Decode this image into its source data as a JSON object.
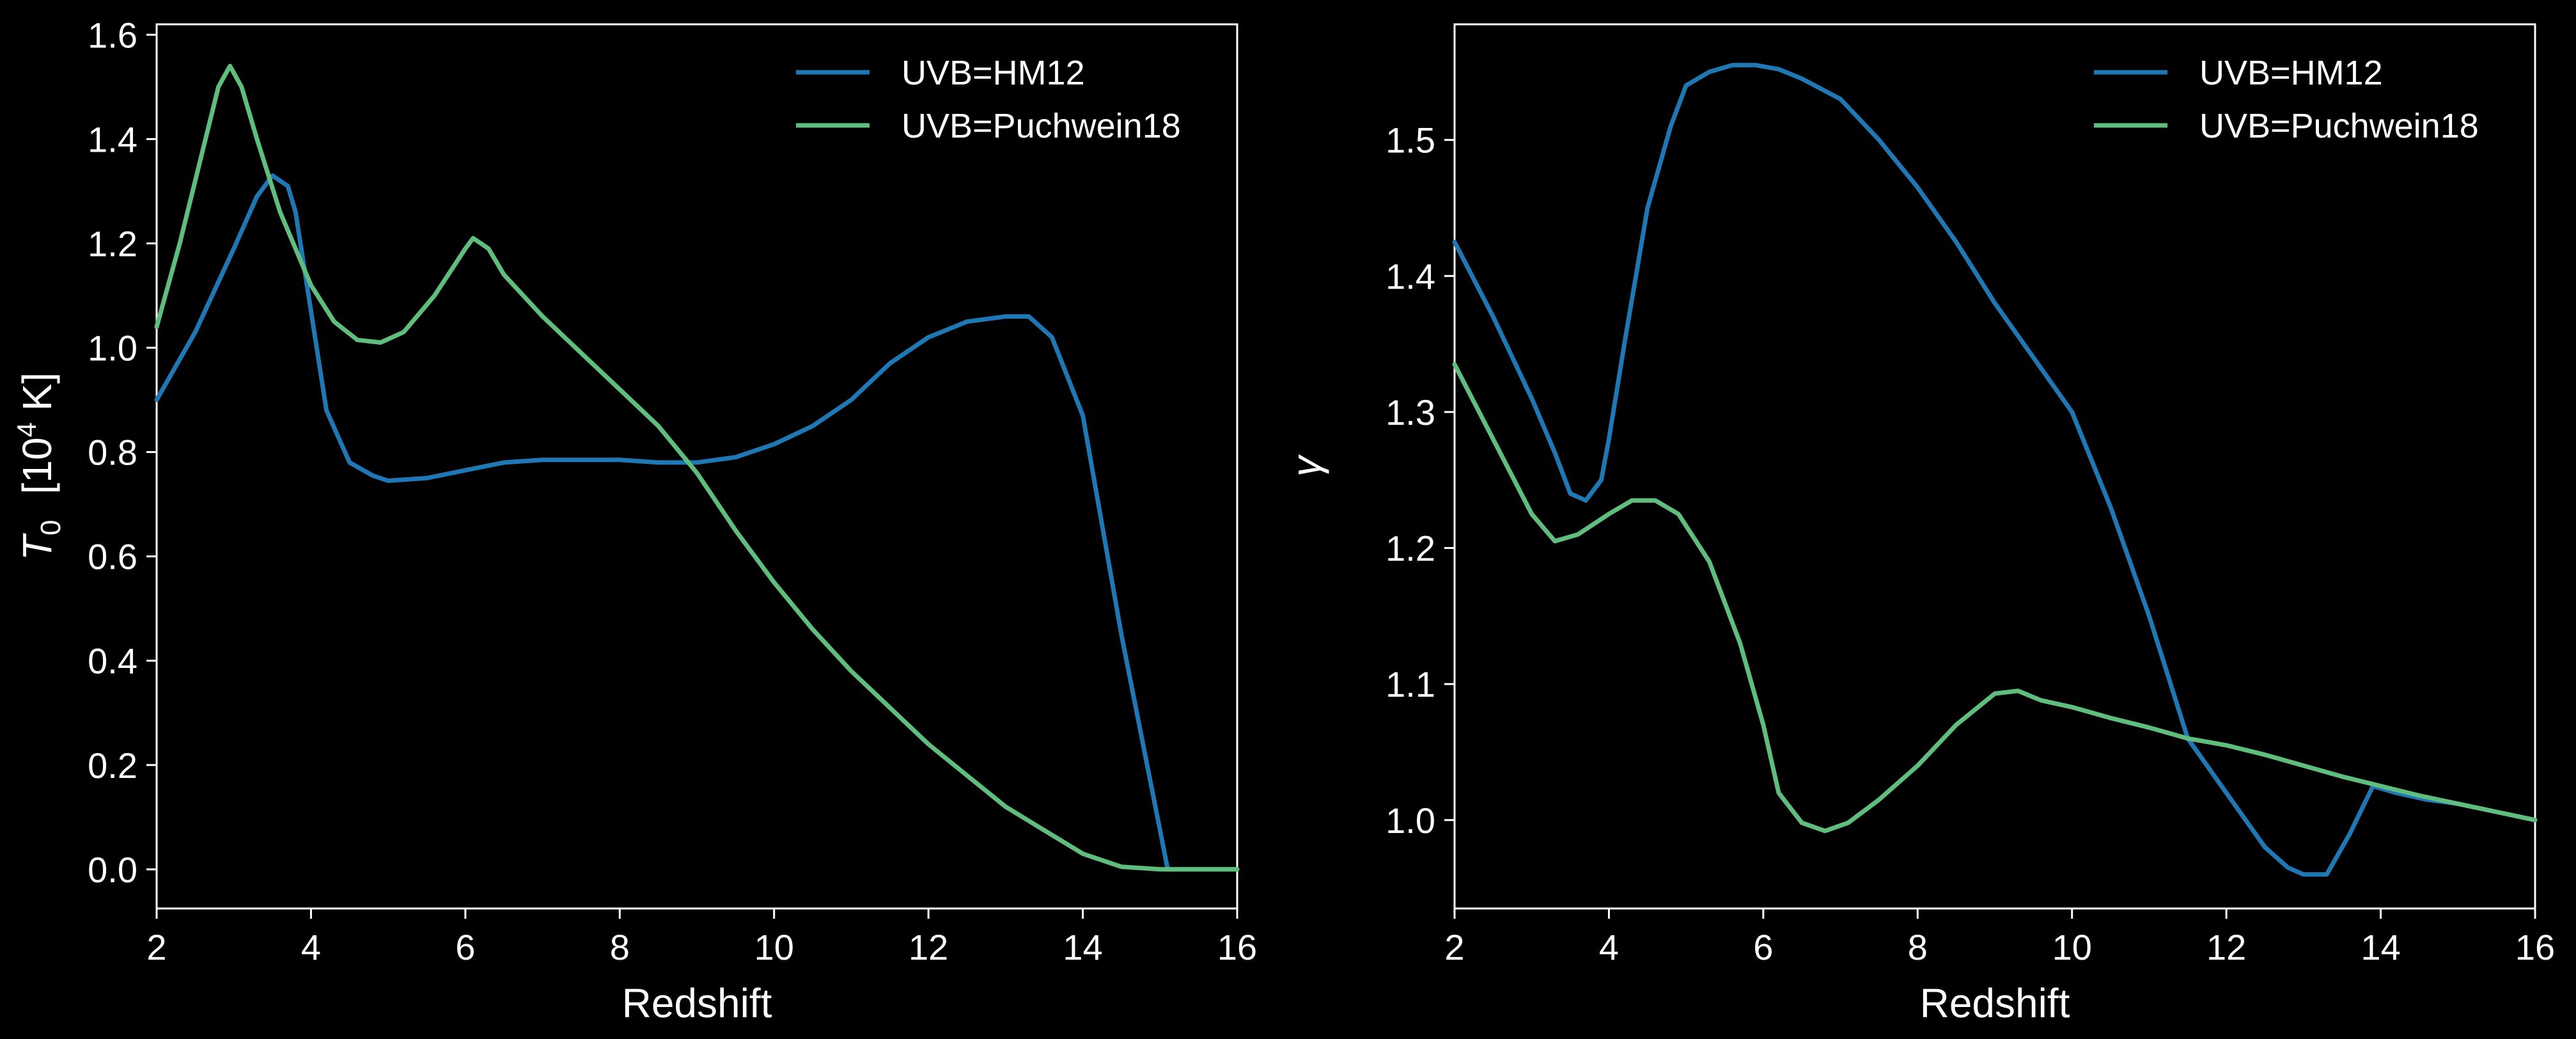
{
  "figure": {
    "background": "#000000",
    "foreground": "#ffffff"
  },
  "chart_data": [
    {
      "type": "line",
      "title": "",
      "xlabel": "Redshift",
      "ylabel_symbol": "T",
      "ylabel_subscript": "0",
      "ylabel_unit_open": "[10",
      "ylabel_unit_sup": "4",
      "ylabel_unit_close": " K]",
      "xlim": [
        2,
        16
      ],
      "ylim": [
        -0.075,
        1.62
      ],
      "xticks": [
        2,
        4,
        6,
        8,
        10,
        12,
        14,
        16
      ],
      "xtick_labels": [
        "2",
        "4",
        "6",
        "8",
        "10",
        "12",
        "14",
        "16"
      ],
      "yticks": [
        0.0,
        0.2,
        0.4,
        0.6,
        0.8,
        1.0,
        1.2,
        1.4,
        1.6
      ],
      "ytick_labels": [
        "0.0",
        "0.2",
        "0.4",
        "0.6",
        "0.8",
        "1.0",
        "1.2",
        "1.4",
        "1.6"
      ],
      "legend": "top-right",
      "grid": false,
      "series": [
        {
          "name": "UVB=HM12",
          "color": "#1f77b4",
          "x": [
            2.0,
            2.5,
            3.0,
            3.3,
            3.5,
            3.7,
            3.8,
            4.0,
            4.2,
            4.5,
            4.8,
            5.0,
            5.5,
            6.0,
            6.5,
            7.0,
            7.5,
            8.0,
            8.5,
            9.0,
            9.5,
            10.0,
            10.5,
            11.0,
            11.5,
            12.0,
            12.5,
            13.0,
            13.3,
            13.6,
            14.0,
            14.5,
            15.1,
            15.5,
            16.0
          ],
          "y": [
            0.9,
            1.03,
            1.19,
            1.29,
            1.33,
            1.31,
            1.26,
            1.07,
            0.88,
            0.78,
            0.755,
            0.745,
            0.75,
            0.765,
            0.78,
            0.785,
            0.785,
            0.785,
            0.78,
            0.78,
            0.79,
            0.815,
            0.85,
            0.9,
            0.97,
            1.02,
            1.05,
            1.06,
            1.06,
            1.02,
            0.87,
            0.45,
            0.0,
            0.0,
            0.0
          ]
        },
        {
          "name": "UVB=Puchwein18",
          "color": "#5fbe7d",
          "x": [
            2.0,
            2.3,
            2.6,
            2.8,
            2.95,
            3.1,
            3.3,
            3.6,
            4.0,
            4.3,
            4.6,
            4.9,
            5.2,
            5.6,
            6.0,
            6.1,
            6.2,
            6.3,
            6.5,
            7.0,
            7.5,
            8.0,
            8.5,
            9.0,
            9.5,
            10.0,
            10.5,
            11.0,
            11.5,
            12.0,
            12.5,
            13.0,
            13.5,
            14.0,
            14.5,
            15.0,
            15.1,
            15.5,
            16.0
          ],
          "y": [
            1.04,
            1.2,
            1.38,
            1.5,
            1.54,
            1.5,
            1.4,
            1.26,
            1.12,
            1.05,
            1.015,
            1.01,
            1.03,
            1.1,
            1.19,
            1.21,
            1.2,
            1.19,
            1.14,
            1.06,
            0.99,
            0.92,
            0.85,
            0.76,
            0.65,
            0.55,
            0.46,
            0.38,
            0.31,
            0.24,
            0.18,
            0.12,
            0.075,
            0.03,
            0.005,
            0.0,
            0.0,
            0.0,
            0.0
          ]
        }
      ]
    },
    {
      "type": "line",
      "title": "",
      "xlabel": "Redshift",
      "ylabel_symbol": "γ",
      "xlim": [
        2,
        16
      ],
      "ylim": [
        0.935,
        1.585
      ],
      "xticks": [
        2,
        4,
        6,
        8,
        10,
        12,
        14,
        16
      ],
      "xtick_labels": [
        "2",
        "4",
        "6",
        "8",
        "10",
        "12",
        "14",
        "16"
      ],
      "yticks": [
        1.0,
        1.1,
        1.2,
        1.3,
        1.4,
        1.5
      ],
      "ytick_labels": [
        "1.0",
        "1.1",
        "1.2",
        "1.3",
        "1.4",
        "1.5"
      ],
      "legend": "top-right",
      "grid": false,
      "series": [
        {
          "name": "UVB=HM12",
          "color": "#1f77b4",
          "x": [
            2.0,
            2.5,
            3.0,
            3.3,
            3.5,
            3.7,
            3.9,
            4.0,
            4.2,
            4.5,
            4.8,
            5.0,
            5.3,
            5.6,
            5.9,
            6.2,
            6.5,
            7.0,
            7.5,
            8.0,
            8.5,
            9.0,
            9.5,
            10.0,
            10.5,
            11.0,
            11.5,
            12.0,
            12.5,
            12.8,
            13.0,
            13.3,
            13.6,
            13.9,
            14.2,
            14.6,
            15.0,
            15.5,
            16.0
          ],
          "y": [
            1.425,
            1.37,
            1.31,
            1.27,
            1.24,
            1.235,
            1.25,
            1.28,
            1.35,
            1.45,
            1.51,
            1.54,
            1.55,
            1.555,
            1.555,
            1.552,
            1.545,
            1.53,
            1.5,
            1.465,
            1.425,
            1.38,
            1.34,
            1.3,
            1.23,
            1.15,
            1.06,
            1.02,
            0.98,
            0.965,
            0.96,
            0.96,
            0.99,
            1.025,
            1.02,
            1.015,
            1.012,
            1.006,
            1.0
          ]
        },
        {
          "name": "UVB=Puchwein18",
          "color": "#5fbe7d",
          "x": [
            2.0,
            2.5,
            3.0,
            3.3,
            3.6,
            4.0,
            4.3,
            4.6,
            4.9,
            5.3,
            5.7,
            6.0,
            6.2,
            6.5,
            6.8,
            7.1,
            7.5,
            8.0,
            8.5,
            9.0,
            9.3,
            9.6,
            10.0,
            10.5,
            11.0,
            11.5,
            12.0,
            12.5,
            13.0,
            13.5,
            14.0,
            14.5,
            15.0,
            15.5,
            16.0
          ],
          "y": [
            1.335,
            1.28,
            1.225,
            1.205,
            1.21,
            1.225,
            1.235,
            1.235,
            1.225,
            1.19,
            1.13,
            1.07,
            1.02,
            0.998,
            0.992,
            0.998,
            1.015,
            1.04,
            1.07,
            1.093,
            1.095,
            1.088,
            1.083,
            1.075,
            1.068,
            1.06,
            1.055,
            1.048,
            1.04,
            1.032,
            1.025,
            1.018,
            1.012,
            1.006,
            1.0
          ]
        }
      ]
    }
  ]
}
